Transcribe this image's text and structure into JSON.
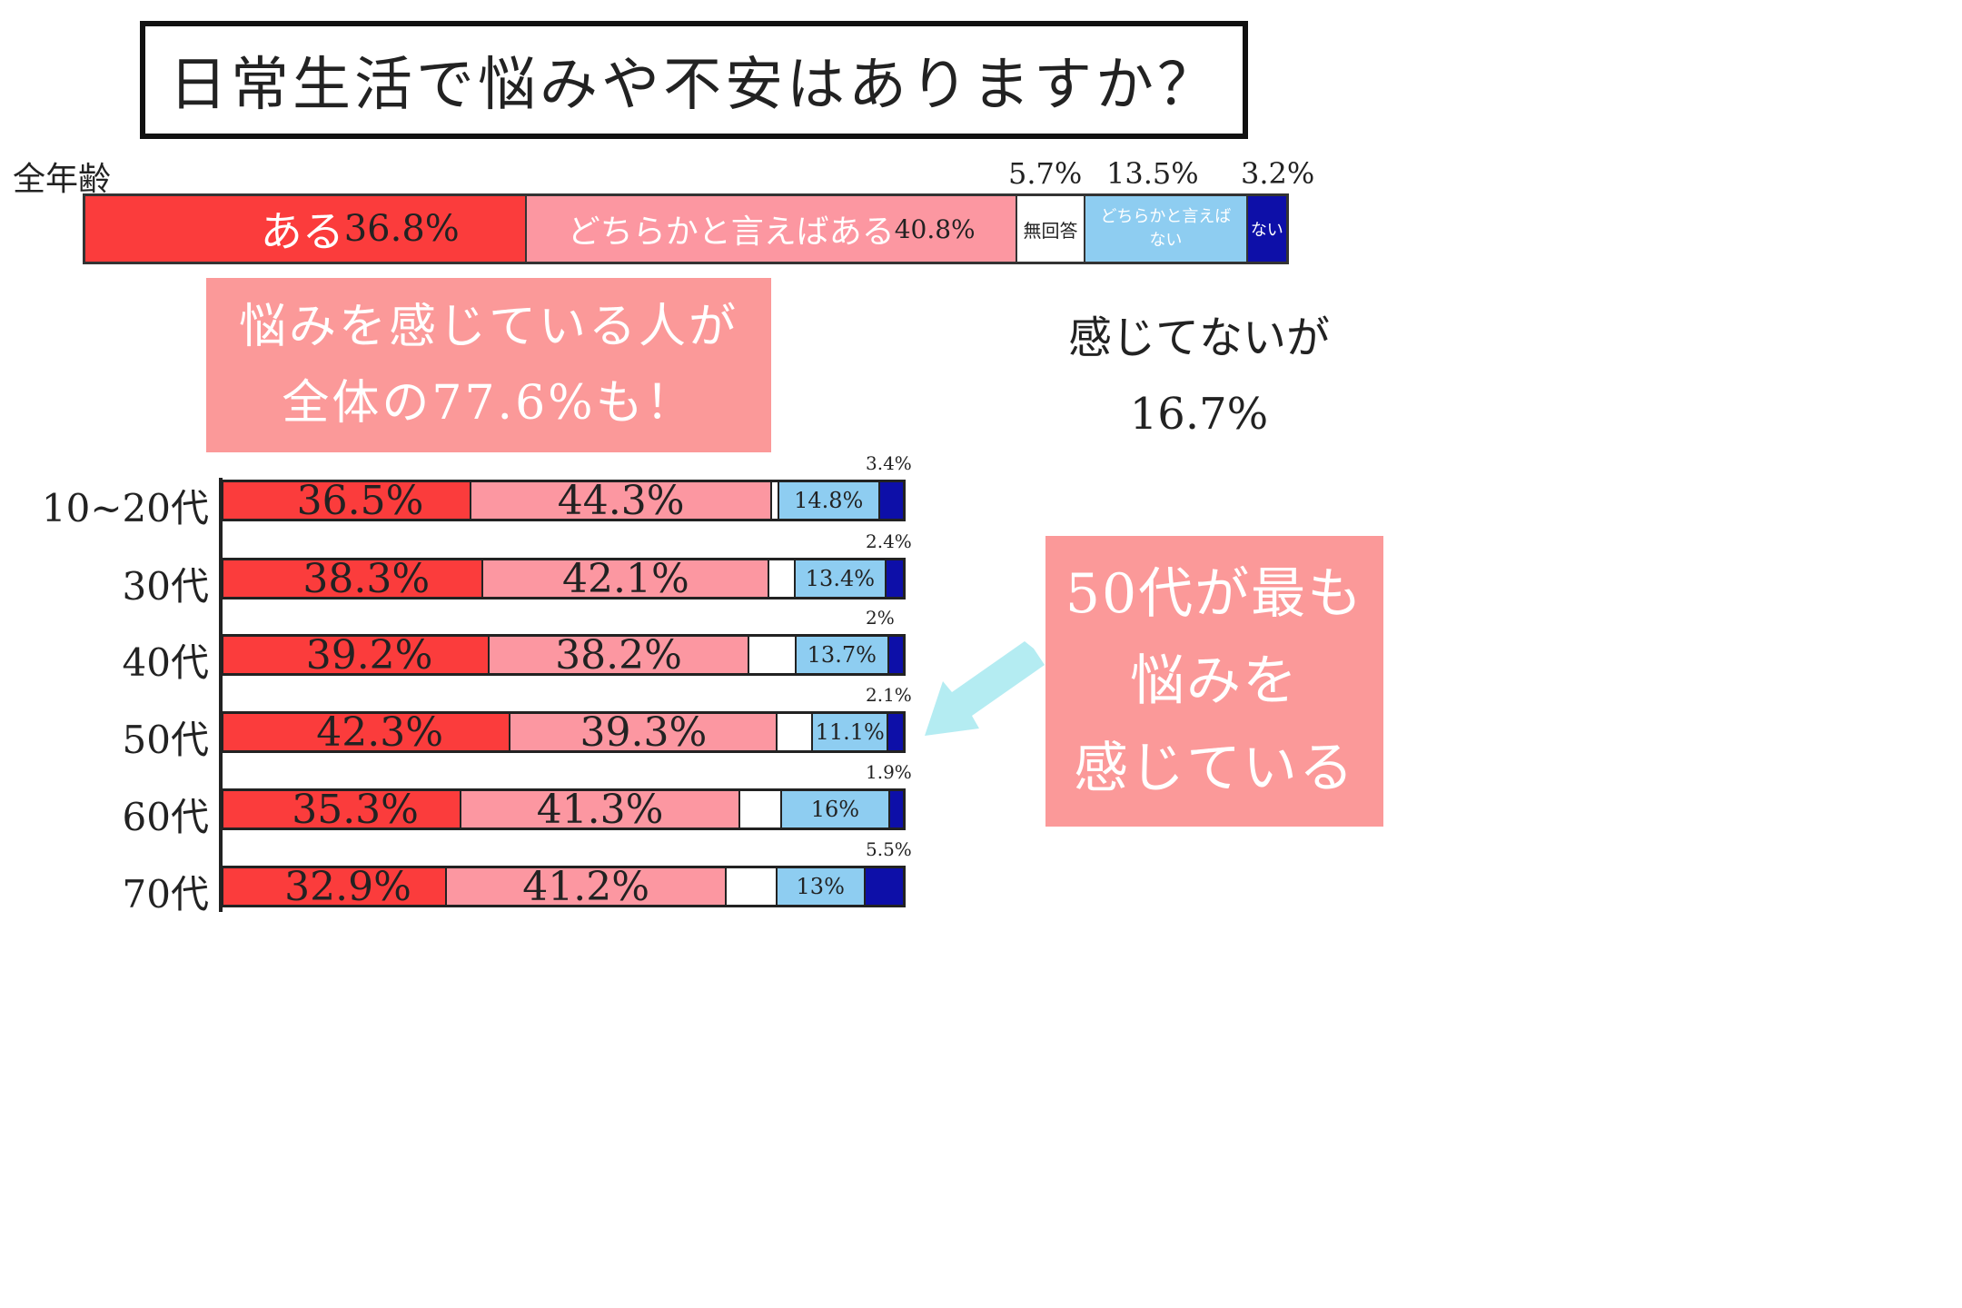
{
  "title": "日常生活で悩みや不安はありますか？",
  "colors": {
    "aru": "#fb3c3c",
    "dochira_aru": "#fc97a1",
    "mukaito": "#ffffff",
    "dochira_nai": "#8ecdf1",
    "nai": "#0d0fa8",
    "callout": "#fb9999",
    "arrow": "#b4ecf2"
  },
  "all_ages": {
    "label": "全年齢",
    "segments": [
      {
        "key": "aru",
        "label": "ある",
        "value": 36.8,
        "text": "36.8%"
      },
      {
        "key": "dochira_aru",
        "label": "どちらかと言えばある",
        "value": 40.8,
        "text": "40.8%"
      },
      {
        "key": "mukaito",
        "label": "無回答",
        "value": 5.7,
        "text": "5.7%"
      },
      {
        "key": "dochira_nai",
        "label": "どちらかと言えば\nない",
        "value": 13.5,
        "text": "13.5%"
      },
      {
        "key": "nai",
        "label": "ない",
        "value": 3.2,
        "text": "3.2%"
      }
    ]
  },
  "callouts": {
    "left_line1": "悩みを感じている人が",
    "left_line2": "全体の77.6%も！",
    "right_line1": "感じてないが",
    "right_line2": "16.7%",
    "fifties_line1": "50代が最も",
    "fifties_line2": "悩みを",
    "fifties_line3": "感じている"
  },
  "chart_data": {
    "type": "bar",
    "stacked": true,
    "orientation": "horizontal",
    "title": "日常生活で悩みや不安はありますか？",
    "categories": [
      "全年齢",
      "10~20代",
      "30代",
      "40代",
      "50代",
      "60代",
      "70代"
    ],
    "series": [
      {
        "key": "aru",
        "name": "ある",
        "values": [
          36.8,
          36.5,
          38.3,
          39.2,
          42.3,
          35.3,
          32.9
        ]
      },
      {
        "key": "dochira_aru",
        "name": "どちらかと言えばある",
        "values": [
          40.8,
          44.3,
          42.1,
          38.2,
          39.3,
          41.3,
          41.2
        ]
      },
      {
        "key": "mukaito",
        "name": "無回答",
        "values": [
          5.7,
          1.0,
          3.8,
          6.9,
          5.2,
          6.2,
          7.4
        ]
      },
      {
        "key": "dochira_nai",
        "name": "どちらかと言えば\nない",
        "values": [
          13.5,
          14.8,
          13.4,
          13.7,
          11.1,
          16,
          13
        ]
      },
      {
        "key": "nai",
        "name": "ない",
        "values": [
          3.2,
          3.4,
          2.4,
          2,
          2.1,
          1.9,
          5.5
        ]
      }
    ],
    "age_rows": [
      {
        "label": "10~20代",
        "labels": [
          "36.5%",
          "44.3%",
          "",
          "14.8%",
          "3.4%"
        ]
      },
      {
        "label": "30代",
        "labels": [
          "38.3%",
          "42.1%",
          "",
          "13.4%",
          "2.4%"
        ]
      },
      {
        "label": "40代",
        "labels": [
          "39.2%",
          "38.2%",
          "",
          "13.7%",
          "2%"
        ]
      },
      {
        "label": "50代",
        "labels": [
          "42.3%",
          "39.3%",
          "",
          "11.1%",
          "2.1%"
        ]
      },
      {
        "label": "60代",
        "labels": [
          "35.3%",
          "41.3%",
          "",
          "16%",
          "1.9%"
        ]
      },
      {
        "label": "70代",
        "labels": [
          "32.9%",
          "41.2%",
          "",
          "13%",
          "5.5%"
        ]
      }
    ],
    "xlim": [
      0,
      100
    ]
  }
}
